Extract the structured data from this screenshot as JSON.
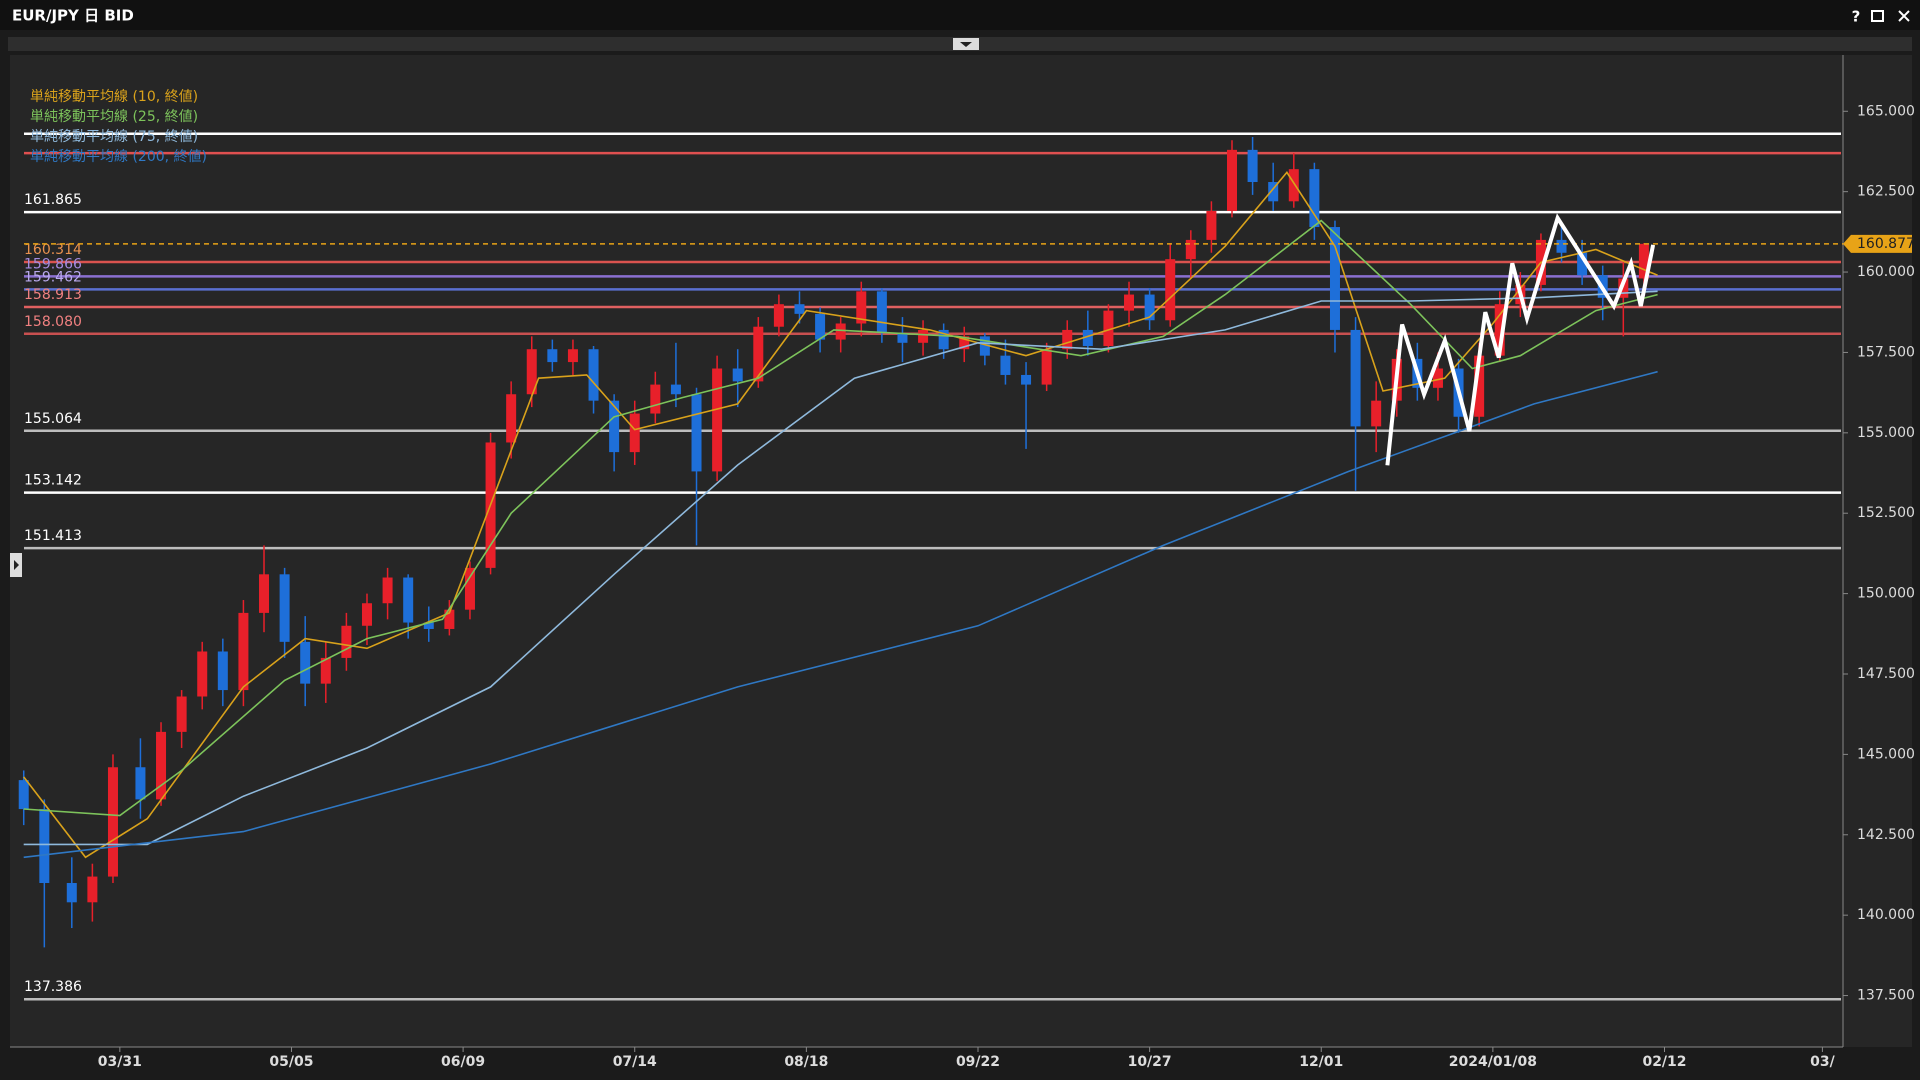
{
  "window": {
    "title": "EUR/JPY 日 BID",
    "help": "?"
  },
  "chart_data": {
    "type": "candlestick",
    "x": [
      0,
      3,
      7,
      10,
      13,
      17,
      20,
      23,
      26,
      29,
      32,
      35,
      38,
      41,
      44,
      47,
      50,
      53,
      56,
      59,
      62,
      65,
      68,
      71,
      74,
      77,
      80,
      83,
      86,
      89,
      92,
      95,
      98,
      101,
      104,
      107,
      110,
      113,
      116,
      119,
      122,
      125,
      128,
      131,
      134,
      137,
      140,
      143,
      146,
      149,
      152,
      155,
      158,
      161,
      164,
      167,
      170,
      173,
      176,
      179,
      182,
      185,
      188,
      191,
      194,
      197,
      200,
      203,
      206,
      209,
      212,
      215,
      218,
      221,
      224,
      227,
      230,
      233,
      236
    ],
    "open": [
      144.2,
      143.3,
      141.0,
      140.4,
      141.2,
      144.6,
      143.6,
      145.7,
      146.8,
      148.2,
      147.0,
      149.4,
      150.6,
      148.5,
      147.2,
      148.0,
      149.0,
      149.7,
      150.5,
      149.1,
      148.9,
      149.5,
      150.8,
      154.7,
      156.2,
      157.6,
      157.2,
      157.6,
      156.0,
      154.4,
      155.6,
      156.5,
      156.2,
      153.8,
      157.0,
      156.6,
      158.3,
      159.0,
      158.7,
      157.9,
      158.4,
      159.4,
      158.1,
      157.8,
      158.2,
      157.6,
      158.0,
      157.4,
      156.8,
      156.5,
      157.6,
      158.2,
      157.7,
      158.8,
      159.3,
      158.5,
      160.4,
      161.0,
      161.9,
      163.8,
      162.8,
      162.2,
      163.2,
      161.4,
      158.2,
      155.2,
      156.0,
      157.3,
      156.4,
      157.0,
      155.5,
      157.4,
      159.0,
      159.6,
      161.0,
      160.6,
      159.9,
      159.2,
      159.8
    ],
    "high": [
      144.5,
      143.6,
      141.8,
      141.6,
      145.0,
      145.5,
      146.0,
      147.0,
      148.5,
      148.6,
      149.8,
      151.5,
      150.8,
      149.3,
      148.5,
      149.4,
      150.0,
      150.8,
      150.6,
      149.6,
      149.8,
      151.0,
      155.0,
      156.6,
      158.0,
      157.9,
      157.9,
      157.7,
      156.2,
      156.0,
      156.9,
      157.8,
      156.4,
      157.4,
      157.6,
      158.6,
      159.3,
      159.4,
      158.9,
      158.6,
      159.7,
      159.5,
      158.6,
      158.5,
      158.4,
      158.3,
      158.1,
      157.9,
      157.2,
      157.8,
      158.5,
      158.8,
      159.0,
      159.7,
      159.5,
      160.9,
      161.3,
      162.2,
      164.1,
      164.2,
      163.4,
      163.7,
      163.4,
      161.6,
      158.6,
      156.6,
      157.6,
      157.8,
      157.5,
      157.3,
      157.8,
      159.4,
      160.0,
      161.2,
      161.5,
      161.0,
      160.2,
      160.3,
      160.9
    ],
    "low": [
      142.8,
      139.0,
      139.6,
      139.8,
      141.0,
      143.0,
      143.4,
      145.2,
      146.4,
      146.5,
      146.5,
      148.8,
      148.0,
      146.5,
      146.6,
      147.6,
      148.4,
      149.2,
      148.6,
      148.5,
      148.7,
      149.2,
      150.6,
      154.2,
      155.8,
      156.9,
      156.8,
      155.6,
      153.8,
      154.0,
      155.3,
      155.8,
      151.5,
      153.5,
      155.8,
      156.4,
      158.0,
      158.4,
      157.5,
      157.5,
      158.0,
      157.8,
      157.2,
      157.4,
      157.3,
      157.2,
      157.1,
      156.5,
      154.5,
      156.3,
      157.3,
      157.4,
      157.5,
      158.3,
      158.2,
      158.3,
      159.8,
      160.6,
      161.7,
      162.4,
      161.9,
      162.0,
      161.0,
      157.5,
      153.2,
      154.4,
      155.5,
      156.0,
      156.0,
      155.0,
      155.2,
      157.2,
      158.6,
      159.4,
      160.3,
      159.6,
      158.5,
      158.0,
      159.5
    ],
    "close": [
      143.3,
      141.0,
      140.4,
      141.2,
      144.6,
      143.6,
      145.7,
      146.8,
      148.2,
      147.0,
      149.4,
      150.6,
      148.5,
      147.2,
      148.0,
      149.0,
      149.7,
      150.5,
      149.1,
      148.9,
      149.5,
      150.8,
      154.7,
      156.2,
      157.6,
      157.2,
      157.6,
      156.0,
      154.4,
      155.6,
      156.5,
      156.2,
      153.8,
      157.0,
      156.6,
      158.3,
      159.0,
      158.7,
      157.9,
      158.4,
      159.4,
      158.1,
      157.8,
      158.2,
      157.6,
      158.0,
      157.4,
      156.8,
      156.5,
      157.6,
      158.2,
      157.7,
      158.8,
      159.3,
      158.5,
      160.4,
      161.0,
      161.9,
      163.8,
      162.8,
      162.2,
      163.2,
      161.4,
      158.2,
      155.2,
      156.0,
      157.3,
      156.4,
      157.0,
      155.5,
      157.4,
      159.0,
      159.6,
      161.0,
      160.6,
      159.9,
      159.2,
      159.8,
      160.877
    ],
    "up_color": "#e8202a",
    "down_color": "#1e6fd9",
    "series": [
      {
        "name": "単純移動平均線 (10, 終値)",
        "color": "#d9a21b",
        "x": [
          0,
          9,
          18,
          32,
          41,
          50,
          62,
          75,
          82,
          89,
          104,
          114,
          132,
          146,
          164,
          175,
          184,
          191,
          198,
          207,
          214,
          221,
          229,
          238
        ],
        "values": [
          144.3,
          141.8,
          143.0,
          147.1,
          148.6,
          148.3,
          149.4,
          156.7,
          156.8,
          155.1,
          155.9,
          158.8,
          158.2,
          157.4,
          158.6,
          160.8,
          163.1,
          160.8,
          156.3,
          156.7,
          158.4,
          160.3,
          160.7,
          159.9
        ]
      },
      {
        "name": "単純移動平均線 (25, 終値)",
        "color": "#7dc35b",
        "x": [
          0,
          14,
          23,
          38,
          50,
          61,
          71,
          86,
          96,
          107,
          118,
          136,
          154,
          166,
          175,
          189,
          202,
          211,
          218,
          229,
          238
        ],
        "values": [
          143.3,
          143.1,
          144.5,
          147.3,
          148.6,
          149.2,
          152.5,
          155.5,
          156.1,
          156.7,
          158.2,
          158.0,
          157.4,
          158.0,
          159.3,
          161.6,
          159.0,
          157.0,
          157.4,
          158.8,
          159.3
        ]
      },
      {
        "name": "単純移動平均線 (75, 終値)",
        "color": "#8fb9dc",
        "x": [
          0,
          18,
          32,
          50,
          68,
          86,
          104,
          121,
          139,
          157,
          175,
          189,
          202,
          220,
          238
        ],
        "values": [
          142.2,
          142.2,
          143.7,
          145.2,
          147.1,
          150.6,
          154.0,
          156.7,
          157.8,
          157.6,
          158.2,
          159.1,
          159.1,
          159.2,
          159.4
        ]
      },
      {
        "name": "単純移動平均線 (200, 終値)",
        "color": "#2f78c4",
        "x": [
          0,
          32,
          68,
          104,
          139,
          166,
          193,
          220,
          238
        ],
        "values": [
          141.8,
          142.6,
          144.7,
          147.1,
          149.0,
          151.5,
          153.8,
          155.9,
          156.9
        ]
      }
    ],
    "levels": [
      {
        "value": 164.3,
        "color": "#ffffff"
      },
      {
        "value": 163.7,
        "color": "#e05050"
      },
      {
        "value": 161.865,
        "label": "161.865",
        "color": "#ffffff",
        "label_color": "#ffffff"
      },
      {
        "value": 160.314,
        "label": "160.314",
        "color": "#d9534f",
        "label_color": "#e8914f"
      },
      {
        "value": 159.866,
        "label": "159.866",
        "color": "#8a6fd0",
        "label_color": "#a48be0"
      },
      {
        "value": 159.462,
        "label": "159.462",
        "color": "#5a6fd0",
        "label_color": "#b9a9ee"
      },
      {
        "value": 158.913,
        "label": "158.913",
        "color": "#e06060",
        "label_color": "#f08080"
      },
      {
        "value": 158.08,
        "label": "158.080",
        "color": "#c85050",
        "label_color": "#f08080"
      },
      {
        "value": 155.064,
        "label": "155.064",
        "color": "#bdbdbd",
        "label_color": "#ffffff"
      },
      {
        "value": 153.142,
        "label": "153.142",
        "color": "#ffffff",
        "label_color": "#ffffff"
      },
      {
        "value": 151.413,
        "label": "151.413",
        "color": "#bdbdbd",
        "label_color": "#ffffff"
      },
      {
        "value": 137.386,
        "label": "137.386",
        "color": "#bdbdbd",
        "label_color": "#ffffff"
      }
    ],
    "last": 160.877,
    "last_color": "#e8a317",
    "legend": "top-left",
    "grid": false,
    "xlim": [
      -2,
      265
    ],
    "xticks": [
      {
        "value": 14,
        "label": "03/31"
      },
      {
        "value": 39,
        "label": "05/05"
      },
      {
        "value": 64,
        "label": "06/09"
      },
      {
        "value": 89,
        "label": "07/14"
      },
      {
        "value": 114,
        "label": "08/18"
      },
      {
        "value": 139,
        "label": "09/22"
      },
      {
        "value": 164,
        "label": "10/27"
      },
      {
        "value": 189,
        "label": "12/01"
      },
      {
        "value": 214,
        "label": "2024/01/08"
      },
      {
        "value": 239,
        "label": "02/12"
      },
      {
        "value": 262,
        "label": "03/"
      }
    ],
    "ylim": [
      135.9,
      166.75
    ],
    "yticks": [
      {
        "value": 137.5,
        "label": "137.500"
      },
      {
        "value": 140,
        "label": "140.000"
      },
      {
        "value": 142.5,
        "label": "142.500"
      },
      {
        "value": 145,
        "label": "145.000"
      },
      {
        "value": 147.5,
        "label": "147.500"
      },
      {
        "value": 150,
        "label": "150.000"
      },
      {
        "value": 152.5,
        "label": "152.500"
      },
      {
        "value": 155,
        "label": "155.000"
      },
      {
        "value": 157.5,
        "label": "157.500"
      },
      {
        "value": 160,
        "label": "160.000"
      },
      {
        "value": 162.5,
        "label": "162.500"
      },
      {
        "value": 165,
        "label": "165.000"
      }
    ]
  }
}
